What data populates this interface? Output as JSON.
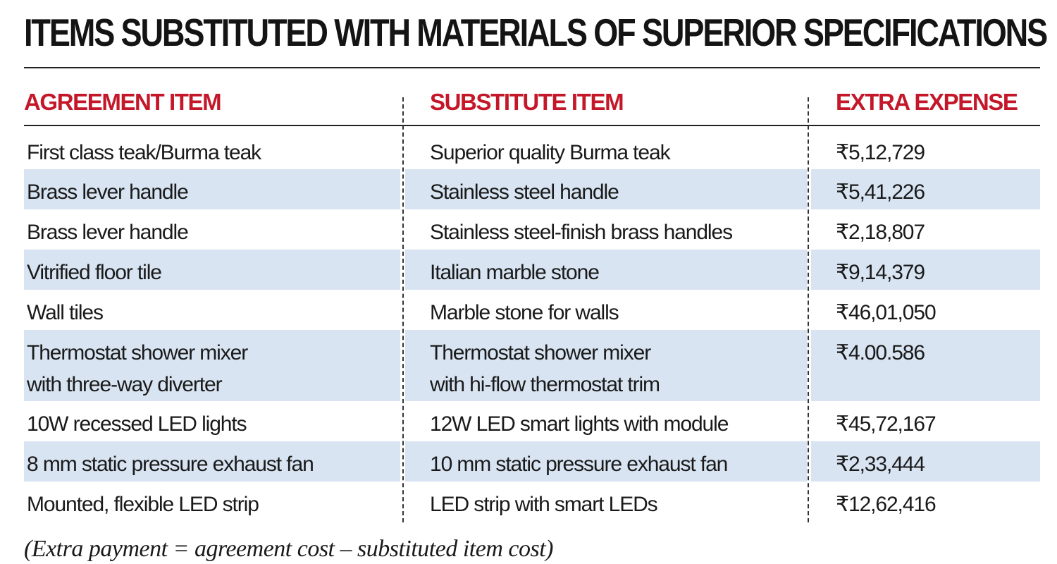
{
  "title": "ITEMS SUBSTITUTED WITH MATERIALS OF SUPERIOR SPECIFICATIONS",
  "columns": [
    "AGREEMENT ITEM",
    "SUBSTITUTE ITEM",
    "EXTRA EXPENSE"
  ],
  "rows": [
    {
      "agreement": [
        "First class teak/Burma teak"
      ],
      "substitute": [
        "Superior quality Burma teak"
      ],
      "expense": "₹5,12,729"
    },
    {
      "agreement": [
        "Brass lever handle"
      ],
      "substitute": [
        "Stainless steel handle"
      ],
      "expense": "₹5,41,226"
    },
    {
      "agreement": [
        "Brass lever handle"
      ],
      "substitute": [
        "Stainless steel-finish brass handles"
      ],
      "expense": "₹2,18,807"
    },
    {
      "agreement": [
        "Vitrified floor tile"
      ],
      "substitute": [
        "Italian marble stone"
      ],
      "expense": "₹9,14,379"
    },
    {
      "agreement": [
        "Wall tiles"
      ],
      "substitute": [
        "Marble stone for walls"
      ],
      "expense": "₹46,01,050"
    },
    {
      "agreement": [
        "Thermostat shower mixer",
        "with three-way diverter"
      ],
      "substitute": [
        "Thermostat shower mixer",
        "with hi-flow thermostat trim"
      ],
      "expense": "₹4.00.586"
    },
    {
      "agreement": [
        "10W recessed LED lights"
      ],
      "substitute": [
        "12W LED smart lights with module"
      ],
      "expense": "₹45,72,167"
    },
    {
      "agreement": [
        "8 mm static pressure exhaust fan"
      ],
      "substitute": [
        "10 mm static pressure exhaust fan"
      ],
      "expense": "₹2,33,444"
    },
    {
      "agreement": [
        "Mounted, flexible LED strip"
      ],
      "substitute": [
        "LED strip with smart LEDs"
      ],
      "expense": "₹12,62,416"
    }
  ],
  "footnote": "(Extra payment = agreement cost – substituted item cost)",
  "colors": {
    "header_text": "#c4182a",
    "row_shade": "#d8e4f2",
    "text": "#1a1a1a"
  }
}
